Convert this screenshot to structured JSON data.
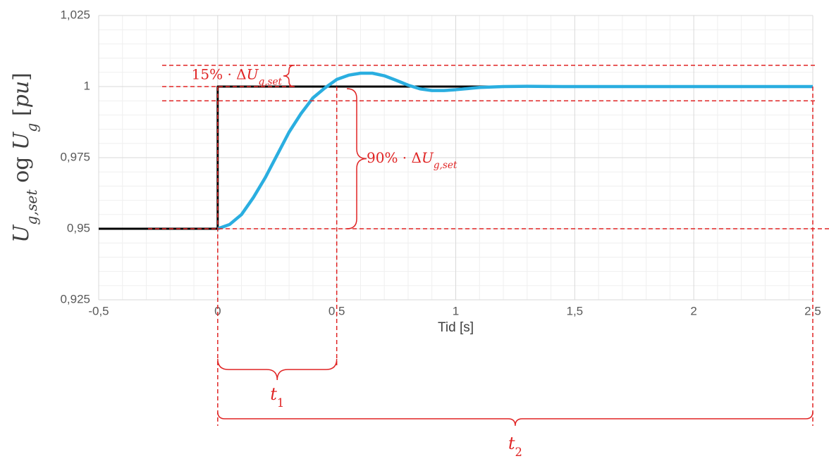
{
  "chart_data": {
    "type": "line",
    "x_label": "Tid [s]",
    "y_label": [
      {
        "text": "U",
        "italic": true,
        "sub": false
      },
      {
        "text": "g,set",
        "italic": true,
        "sub": true
      },
      {
        "text": " og ",
        "italic": false,
        "sub": false
      },
      {
        "text": "U",
        "italic": true,
        "sub": false
      },
      {
        "text": "g",
        "italic": true,
        "sub": true
      },
      {
        "text": " [",
        "italic": false,
        "sub": false
      },
      {
        "text": "pu",
        "italic": true,
        "sub": false
      },
      {
        "text": "]",
        "italic": false,
        "sub": false
      }
    ],
    "xlim": [
      -0.5,
      2.5
    ],
    "ylim": [
      0.925,
      1.025
    ],
    "xticks": [
      {
        "value": -0.5,
        "label": "-0,5"
      },
      0,
      {
        "value": 0.5,
        "label": "0,5"
      },
      1,
      {
        "value": 1.5,
        "label": "1,5"
      },
      2,
      {
        "value": 2.5,
        "label": "2,5"
      }
    ],
    "yticks": [
      {
        "value": 0.925,
        "label": "0,925"
      },
      {
        "value": 0.95,
        "label": "0,95"
      },
      {
        "value": 0.975,
        "label": "0,975"
      },
      1,
      {
        "value": 1.025,
        "label": "1,025"
      }
    ],
    "grid": true,
    "minor_grid": true,
    "series": [
      {
        "name": "U_g,set",
        "color": "#000000",
        "x": [
          -0.5,
          0,
          0,
          2.5
        ],
        "values": [
          0.95,
          0.95,
          1,
          1
        ]
      },
      {
        "name": "U_g",
        "color": "#2aaee0",
        "x": [
          0,
          0.05,
          0.1,
          0.15,
          0.2,
          0.25,
          0.3,
          0.35,
          0.4,
          0.45,
          0.5,
          0.55,
          0.6,
          0.65,
          0.7,
          0.75,
          0.8,
          0.85,
          0.9,
          0.95,
          1.0,
          1.05,
          1.1,
          1.2,
          1.3,
          1.45,
          2.5
        ],
        "values": [
          0.95,
          0.9515,
          0.955,
          0.961,
          0.968,
          0.976,
          0.984,
          0.9905,
          0.996,
          0.9995,
          1.0025,
          1.004,
          1.0047,
          1.0047,
          1.0038,
          1.0022,
          1.0005,
          0.9992,
          0.9986,
          0.9986,
          0.9989,
          0.9993,
          0.9997,
          1.0,
          1.0001,
          1.0,
          1.0
        ]
      }
    ],
    "annotation_color": "#e02424",
    "hlines": [
      1.0075,
      1,
      0.995,
      0.95
    ],
    "vlines": [
      0,
      0.5,
      2.5
    ],
    "band_label": [
      {
        "text": "15% · Δ",
        "italic": false,
        "sub": false
      },
      {
        "text": "U",
        "italic": true,
        "sub": false
      },
      {
        "text": "g,set",
        "italic": true,
        "sub": true
      }
    ],
    "rise_label": [
      {
        "text": "90% · Δ",
        "italic": false,
        "sub": false
      },
      {
        "text": "U",
        "italic": true,
        "sub": false
      },
      {
        "text": "g,set",
        "italic": true,
        "sub": true
      }
    ],
    "t1_label": [
      {
        "text": "t",
        "italic": true,
        "sub": false
      },
      {
        "text": "1",
        "italic": false,
        "sub": true
      }
    ],
    "t2_label": [
      {
        "text": "t",
        "italic": true,
        "sub": false
      },
      {
        "text": "2",
        "italic": false,
        "sub": true
      }
    ]
  }
}
